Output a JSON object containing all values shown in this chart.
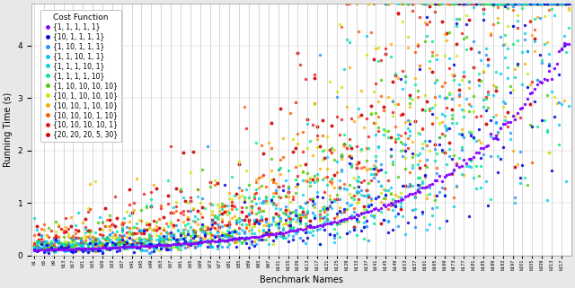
{
  "title": "",
  "xlabel": "Benchmark Names",
  "ylabel": "Running Time (s)",
  "background_color": "#e8e8e8",
  "plot_background": "#ffffff",
  "grid_color": "#c8c8c8",
  "legend_title": "Cost Function",
  "series": [
    {
      "label": "{1, 1, 1, 1, 1}",
      "color": "#8800ff",
      "zorder": 10,
      "size": 6,
      "alpha": 0.95
    },
    {
      "label": "{10, 1, 1, 1, 1}",
      "color": "#0000dd",
      "zorder": 9,
      "size": 6,
      "alpha": 0.85
    },
    {
      "label": "{1, 10, 1, 1, 1}",
      "color": "#1e90ff",
      "zorder": 8,
      "size": 6,
      "alpha": 0.8
    },
    {
      "label": "{1, 1, 10, 1, 1}",
      "color": "#00c8ff",
      "zorder": 7,
      "size": 6,
      "alpha": 0.8
    },
    {
      "label": "{1, 1, 1, 10, 1}",
      "color": "#00d8c8",
      "zorder": 6,
      "size": 6,
      "alpha": 0.8
    },
    {
      "label": "{1, 1, 1, 1, 10}",
      "color": "#00ee88",
      "zorder": 5,
      "size": 6,
      "alpha": 0.8
    },
    {
      "label": "{1, 10, 10, 10, 10}",
      "color": "#44cc00",
      "zorder": 4,
      "size": 6,
      "alpha": 0.8
    },
    {
      "label": "{10, 1, 10, 10, 10}",
      "color": "#c8e800",
      "zorder": 3,
      "size": 6,
      "alpha": 0.8
    },
    {
      "label": "{10, 10, 1, 10, 10}",
      "color": "#ffaa00",
      "zorder": 2,
      "size": 6,
      "alpha": 0.8
    },
    {
      "label": "{10, 10, 10, 1, 10}",
      "color": "#ff5500",
      "zorder": 2,
      "size": 6,
      "alpha": 0.8
    },
    {
      "label": "{10, 10, 10, 10, 1}",
      "color": "#ee1111",
      "zorder": 2,
      "size": 6,
      "alpha": 0.8
    },
    {
      "label": "{20, 20, 20, 5, 30}",
      "color": "#cc0000",
      "zorder": 1,
      "size": 8,
      "alpha": 0.9
    }
  ],
  "n_benchmarks": 220,
  "ylim": [
    0,
    4.8
  ],
  "yticks": [
    0,
    1,
    2,
    3,
    4
  ],
  "fig_width": 6.4,
  "fig_height": 3.21,
  "dpi": 100,
  "base_seed": 42
}
